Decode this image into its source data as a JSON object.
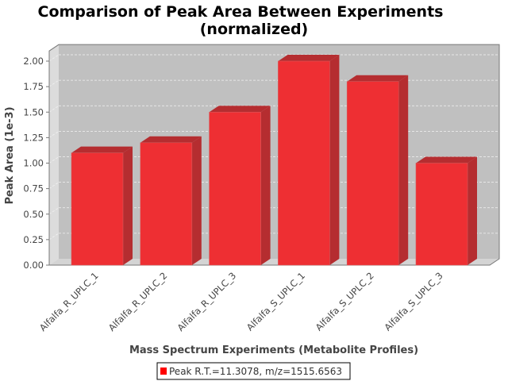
{
  "chart_data": {
    "type": "bar",
    "title_lines": [
      "Comparison of Peak Area Between Experiments",
      "(normalized)"
    ],
    "xlabel": "Mass Spectrum Experiments (Metabolite Profiles)",
    "ylabel": "Peak Area (1e-3)",
    "categories": [
      "Alfalfa_R_UPLC_1",
      "Alfalfa_R_UPLC_2",
      "Alfalfa_R_UPLC_3",
      "Alfalfa_S_UPLC_1",
      "Alfalfa_S_UPLC_2",
      "Alfalfa_S_UPLC_3"
    ],
    "series": [
      {
        "name": "Peak R.T.=11.3078, m/z=1515.6563",
        "values": [
          1.1,
          1.2,
          1.5,
          2.0,
          1.8,
          1.0
        ],
        "color": "#ee2f33"
      }
    ],
    "ylim": [
      0,
      2.1
    ],
    "yticks": [
      "0.00",
      "0.25",
      "0.50",
      "0.75",
      "1.00",
      "1.25",
      "1.50",
      "1.75",
      "2.00"
    ],
    "grid": true,
    "style": "3d",
    "legend_position": "bottom",
    "plot_background": "#c0c0c0"
  }
}
